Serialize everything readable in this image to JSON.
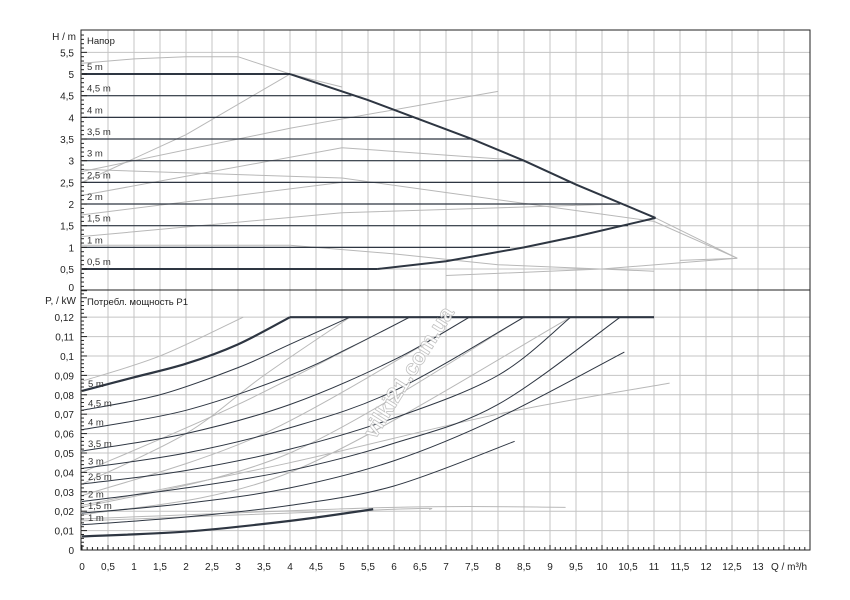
{
  "chart_data": [
    {
      "type": "line",
      "title": "Напор",
      "ylabel": "H / m",
      "xlabel": "Q / m³/h",
      "xlim": [
        0,
        14
      ],
      "ylim": [
        0,
        6
      ],
      "grid": true,
      "yticks": [
        "0",
        "0,5",
        "1",
        "1,5",
        "2",
        "2,5",
        "3",
        "3,5",
        "4",
        "4,5",
        "5",
        "5,5"
      ],
      "series": [
        {
          "name": "5 m",
          "points": [
            [
              0,
              5
            ],
            [
              4,
              5
            ]
          ]
        },
        {
          "name": "4,5 m",
          "points": [
            [
              0,
              4.5
            ],
            [
              5.18,
              4.5
            ]
          ]
        },
        {
          "name": "4 m",
          "points": [
            [
              0,
              4
            ],
            [
              6.35,
              4
            ]
          ]
        },
        {
          "name": "3,5 m",
          "points": [
            [
              0,
              3.5
            ],
            [
              7.5,
              3.5
            ]
          ]
        },
        {
          "name": "3 m",
          "points": [
            [
              0,
              3
            ],
            [
              8.5,
              3
            ]
          ]
        },
        {
          "name": "2,5 m",
          "points": [
            [
              0,
              2.5
            ],
            [
              9.44,
              2.5
            ]
          ]
        },
        {
          "name": "2 m",
          "points": [
            [
              0,
              2
            ],
            [
              10.35,
              2
            ]
          ]
        },
        {
          "name": "1,5 m",
          "points": [
            [
              0,
              1.5
            ],
            [
              10.5,
              1.5
            ]
          ]
        },
        {
          "name": "1 m",
          "points": [
            [
              0,
              1
            ],
            [
              8.23,
              1
            ]
          ]
        },
        {
          "name": "0,5 m",
          "points": [
            [
              0,
              0.5
            ],
            [
              5.68,
              0.5
            ]
          ]
        }
      ],
      "envelope_max": [
        [
          4,
          5
        ],
        [
          5.5,
          4.4
        ],
        [
          7.5,
          3.5
        ],
        [
          8.5,
          3.0
        ],
        [
          9.5,
          2.45
        ],
        [
          11.03,
          1.68
        ]
      ],
      "envelope_min": [
        [
          5.68,
          0.5
        ],
        [
          7,
          0.68
        ],
        [
          8.5,
          1.0
        ],
        [
          9.5,
          1.25
        ],
        [
          11.03,
          1.68
        ]
      ],
      "reference_curves": [
        [
          [
            0,
            5.25
          ],
          [
            1,
            5.35
          ],
          [
            2,
            5.4
          ],
          [
            3,
            5.4
          ],
          [
            4,
            5.0
          ],
          [
            5,
            4.7
          ]
        ],
        [
          [
            0,
            2.5
          ],
          [
            2,
            3.6
          ],
          [
            4,
            5.0
          ]
        ],
        [
          [
            0,
            2.75
          ],
          [
            4,
            3.75
          ],
          [
            8,
            4.6
          ]
        ],
        [
          [
            0,
            2.2
          ],
          [
            5,
            3.3
          ],
          [
            8.5,
            3.0
          ]
        ],
        [
          [
            0,
            1.75
          ],
          [
            5,
            2.5
          ],
          [
            9.44,
            2.5
          ]
        ],
        [
          [
            0,
            1.25
          ],
          [
            5,
            1.8
          ],
          [
            10.35,
            2.0
          ]
        ],
        [
          [
            0,
            1.05
          ],
          [
            4,
            1.05
          ],
          [
            6,
            0.85
          ],
          [
            8,
            0.6
          ],
          [
            11,
            0.45
          ]
        ],
        [
          [
            0,
            2.8
          ],
          [
            5,
            2.6
          ],
          [
            8,
            2.1
          ],
          [
            11,
            1.6
          ],
          [
            12.6,
            0.75
          ],
          [
            10,
            0.5
          ],
          [
            7,
            0.35
          ]
        ],
        [
          [
            11.03,
            1.68
          ],
          [
            12.6,
            0.75
          ],
          [
            11.5,
            0.7
          ]
        ]
      ]
    },
    {
      "type": "line",
      "title": "Потребл. мощность P1",
      "ylabel": "P, / kW",
      "xlabel": "Q / m³/h",
      "xlim": [
        0,
        14
      ],
      "ylim": [
        0,
        0.134
      ],
      "grid": true,
      "xticks": [
        "0",
        "0,5",
        "1",
        "1,5",
        "2",
        "2,5",
        "3",
        "3,5",
        "4",
        "4,5",
        "5",
        "5,5",
        "6",
        "6,5",
        "7",
        "7,5",
        "8",
        "8,5",
        "9",
        "9,5",
        "10",
        "10,5",
        "11",
        "11,5",
        "12",
        "12,5",
        "13"
      ],
      "yticks": [
        "0",
        "0,01",
        "0,02",
        "0,03",
        "0,04",
        "0,05",
        "0,06",
        "0,07",
        "0,08",
        "0,09",
        "0,1",
        "0,11",
        "0,12"
      ],
      "series": [
        {
          "name": "5 m",
          "points": [
            [
              0,
              0.082
            ],
            [
              1,
              0.089
            ],
            [
              2,
              0.096
            ],
            [
              3,
              0.106
            ],
            [
              4,
              0.12
            ]
          ]
        },
        {
          "name": "4,5 m",
          "points": [
            [
              0,
              0.072
            ],
            [
              1.5,
              0.08
            ],
            [
              3,
              0.094
            ],
            [
              4,
              0.106
            ],
            [
              5.15,
              0.12
            ]
          ]
        },
        {
          "name": "4 m",
          "points": [
            [
              0,
              0.062
            ],
            [
              2,
              0.072
            ],
            [
              4,
              0.09
            ],
            [
              5.2,
              0.105
            ],
            [
              6.3,
              0.12
            ]
          ]
        },
        {
          "name": "3,5 m",
          "points": [
            [
              0,
              0.051
            ],
            [
              2,
              0.06
            ],
            [
              4,
              0.075
            ],
            [
              6,
              0.098
            ],
            [
              7.45,
              0.12
            ]
          ]
        },
        {
          "name": "3 m",
          "points": [
            [
              0,
              0.042
            ],
            [
              2,
              0.05
            ],
            [
              4,
              0.063
            ],
            [
              6,
              0.082
            ],
            [
              8.5,
              0.12
            ]
          ]
        },
        {
          "name": "2,5 m",
          "points": [
            [
              0,
              0.034
            ],
            [
              2,
              0.041
            ],
            [
              4,
              0.052
            ],
            [
              6,
              0.068
            ],
            [
              8,
              0.09
            ],
            [
              9.4,
              0.12
            ]
          ]
        },
        {
          "name": "2 m",
          "points": [
            [
              0,
              0.025
            ],
            [
              2,
              0.032
            ],
            [
              4,
              0.041
            ],
            [
              6,
              0.055
            ],
            [
              8,
              0.075
            ],
            [
              10.35,
              0.12
            ]
          ]
        },
        {
          "name": "1,5 m",
          "points": [
            [
              0,
              0.019
            ],
            [
              2,
              0.024
            ],
            [
              4,
              0.032
            ],
            [
              6,
              0.046
            ],
            [
              8,
              0.068
            ],
            [
              10.43,
              0.102
            ]
          ]
        },
        {
          "name": "1 m",
          "points": [
            [
              0,
              0.013
            ],
            [
              2,
              0.017
            ],
            [
              4,
              0.023
            ],
            [
              6,
              0.033
            ],
            [
              8.32,
              0.056
            ]
          ]
        },
        {
          "name": "",
          "points": [
            [
              0,
              0.007
            ],
            [
              2,
              0.0095
            ],
            [
              4,
              0.015
            ],
            [
              5.6,
              0.021
            ]
          ]
        }
      ],
      "max_power": [
        [
          4,
          0.12
        ],
        [
          11,
          0.12
        ]
      ],
      "reference_curves": [
        [
          [
            0,
            0.087
          ],
          [
            1.5,
            0.1
          ],
          [
            3.1,
            0.12
          ]
        ],
        [
          [
            0,
            0.034
          ],
          [
            2,
            0.06
          ],
          [
            3.5,
            0.09
          ],
          [
            5.15,
            0.12
          ]
        ],
        [
          [
            0,
            0.04
          ],
          [
            3,
            0.075
          ],
          [
            6.3,
            0.12
          ]
        ],
        [
          [
            0,
            0.028
          ],
          [
            3.5,
            0.06
          ],
          [
            7.45,
            0.12
          ]
        ],
        [
          [
            0,
            0.022
          ],
          [
            4,
            0.05
          ],
          [
            8.5,
            0.12
          ]
        ],
        [
          [
            0,
            0.018
          ],
          [
            4,
            0.04
          ],
          [
            9.4,
            0.12
          ]
        ],
        [
          [
            0,
            0.023
          ],
          [
            4,
            0.045
          ],
          [
            8,
            0.07
          ],
          [
            11.3,
            0.086
          ]
        ],
        [
          [
            0,
            0.016
          ],
          [
            6,
            0.022
          ],
          [
            9.3,
            0.022
          ]
        ],
        [
          [
            0,
            0.015
          ],
          [
            6,
            0.021
          ],
          [
            6.7,
            0.021
          ]
        ]
      ]
    }
  ],
  "watermark": "vilki21.com.ua"
}
